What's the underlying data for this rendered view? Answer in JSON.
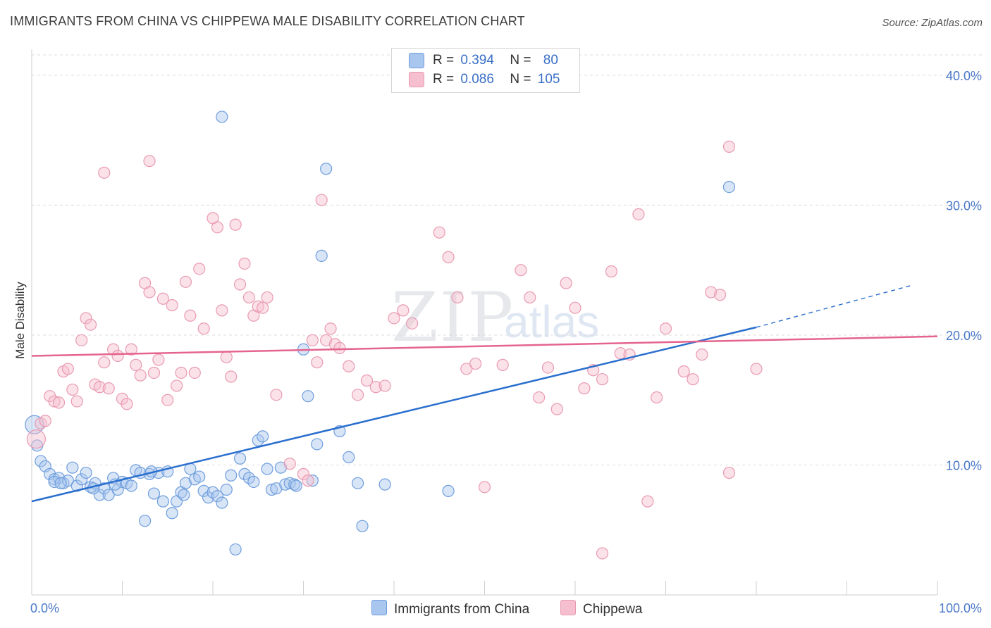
{
  "title": "IMMIGRANTS FROM CHINA VS CHIPPEWA MALE DISABILITY CORRELATION CHART",
  "source": "Source: ZipAtlas.com",
  "watermark": {
    "zip": "ZIP",
    "atlas": "atlas"
  },
  "legend": {
    "r_label": "R =",
    "n_label": "N =",
    "series": [
      {
        "name": "Immigrants from China",
        "r": "0.394",
        "n": "80",
        "color": "#a9c6ee",
        "stroke": "#6f9edd"
      },
      {
        "name": "Chippewa",
        "r": "0.086",
        "n": "105",
        "color": "#f6bfcf",
        "stroke": "#e99ab2"
      }
    ]
  },
  "chart_data": {
    "type": "scatter",
    "title": "IMMIGRANTS FROM CHINA VS CHIPPEWA MALE DISABILITY CORRELATION CHART",
    "xlabel": "",
    "ylabel": "Male Disability",
    "xlim": [
      0,
      100
    ],
    "ylim": [
      0,
      42
    ],
    "x_tick_labels": [
      "0.0%",
      "100.0%"
    ],
    "y_ticks": [
      10,
      20,
      30,
      40
    ],
    "y_tick_labels": [
      "10.0%",
      "20.0%",
      "30.0%",
      "40.0%"
    ],
    "grid": true,
    "legend_position": "top-center",
    "series": [
      {
        "name": "Immigrants from China",
        "color": "#a9c6ee",
        "stroke": "#6f9edd",
        "line_color": "#2a6fce",
        "trend": {
          "x0": 0,
          "y0": 7.2,
          "x1": 80,
          "y1": 20.6,
          "dash_to_x": 97,
          "dash_to_y": 23.8
        },
        "points": [
          [
            0.3,
            13.1
          ],
          [
            0.6,
            11.5
          ],
          [
            1,
            10.3
          ],
          [
            1.5,
            9.9
          ],
          [
            2,
            9.3
          ],
          [
            2.5,
            8.9
          ],
          [
            3,
            9.0
          ],
          [
            3.5,
            8.6
          ],
          [
            4,
            8.8
          ],
          [
            4.5,
            9.8
          ],
          [
            5,
            8.4
          ],
          [
            5.5,
            8.9
          ],
          [
            6,
            9.4
          ],
          [
            6.5,
            8.3
          ],
          [
            7,
            8.6
          ],
          [
            7.5,
            7.7
          ],
          [
            8,
            8.2
          ],
          [
            8.5,
            7.7
          ],
          [
            9,
            9.0
          ],
          [
            9.5,
            8.1
          ],
          [
            10,
            8.7
          ],
          [
            10.5,
            8.6
          ],
          [
            11,
            8.4
          ],
          [
            11.5,
            9.6
          ],
          [
            12,
            9.4
          ],
          [
            12.5,
            5.7
          ],
          [
            13,
            9.3
          ],
          [
            13.5,
            7.8
          ],
          [
            14,
            9.4
          ],
          [
            14.5,
            7.2
          ],
          [
            15,
            9.5
          ],
          [
            15.5,
            6.3
          ],
          [
            16,
            7.2
          ],
          [
            16.5,
            7.9
          ],
          [
            17,
            8.6
          ],
          [
            17.5,
            9.7
          ],
          [
            18,
            8.9
          ],
          [
            18.5,
            9.1
          ],
          [
            19,
            8.0
          ],
          [
            19.5,
            7.5
          ],
          [
            20,
            7.9
          ],
          [
            20.5,
            7.6
          ],
          [
            21,
            7.1
          ],
          [
            21.5,
            8.1
          ],
          [
            22,
            9.2
          ],
          [
            21,
            36.8
          ],
          [
            22.5,
            3.5
          ],
          [
            23,
            10.5
          ],
          [
            23.5,
            9.3
          ],
          [
            24,
            9.0
          ],
          [
            24.5,
            8.7
          ],
          [
            25,
            11.9
          ],
          [
            25.5,
            12.2
          ],
          [
            26,
            9.7
          ],
          [
            26.5,
            8.1
          ],
          [
            27,
            8.2
          ],
          [
            27.5,
            9.8
          ],
          [
            28,
            8.5
          ],
          [
            28.5,
            8.6
          ],
          [
            29,
            8.5
          ],
          [
            29.2,
            8.4
          ],
          [
            30,
            18.9
          ],
          [
            30.5,
            15.3
          ],
          [
            31,
            8.8
          ],
          [
            31.5,
            11.6
          ],
          [
            32,
            26.1
          ],
          [
            32.5,
            32.8
          ],
          [
            34,
            12.6
          ],
          [
            35,
            10.6
          ],
          [
            36,
            8.6
          ],
          [
            36.5,
            5.3
          ],
          [
            39,
            8.5
          ],
          [
            46,
            8.0
          ],
          [
            77,
            31.4
          ],
          [
            2.5,
            8.7
          ],
          [
            3.2,
            8.6
          ],
          [
            6.8,
            8.2
          ],
          [
            9.2,
            8.5
          ],
          [
            13.2,
            9.5
          ],
          [
            16.8,
            7.7
          ]
        ]
      },
      {
        "name": "Chippewa",
        "color": "#f6bfcf",
        "stroke": "#e99ab2",
        "line_color": "#e4648f",
        "trend": {
          "x0": 0,
          "y0": 18.4,
          "x1": 100,
          "y1": 19.9
        },
        "points": [
          [
            0.5,
            12.0
          ],
          [
            1,
            13.2
          ],
          [
            1.5,
            13.4
          ],
          [
            2,
            15.3
          ],
          [
            2.5,
            14.9
          ],
          [
            3,
            14.8
          ],
          [
            3.5,
            17.2
          ],
          [
            4,
            17.4
          ],
          [
            4.5,
            15.8
          ],
          [
            5,
            14.9
          ],
          [
            5.5,
            19.6
          ],
          [
            6,
            21.3
          ],
          [
            6.5,
            20.8
          ],
          [
            7,
            16.2
          ],
          [
            7.5,
            16.0
          ],
          [
            8,
            17.9
          ],
          [
            8.5,
            15.9
          ],
          [
            9,
            18.9
          ],
          [
            9.5,
            18.4
          ],
          [
            10,
            15.1
          ],
          [
            10.5,
            14.7
          ],
          [
            11,
            18.9
          ],
          [
            11.5,
            17.7
          ],
          [
            12,
            16.9
          ],
          [
            12.5,
            24.0
          ],
          [
            13,
            23.3
          ],
          [
            13.5,
            17.1
          ],
          [
            14,
            18.1
          ],
          [
            14.5,
            22.8
          ],
          [
            15,
            15.0
          ],
          [
            15.5,
            22.3
          ],
          [
            16,
            16.1
          ],
          [
            16.5,
            17.1
          ],
          [
            17,
            24.1
          ],
          [
            17.5,
            21.5
          ],
          [
            18,
            17.1
          ],
          [
            18.5,
            25.1
          ],
          [
            19,
            20.5
          ],
          [
            20,
            29.0
          ],
          [
            20.5,
            28.3
          ],
          [
            21,
            21.9
          ],
          [
            21.5,
            18.3
          ],
          [
            22,
            16.8
          ],
          [
            22.5,
            28.5
          ],
          [
            23,
            23.9
          ],
          [
            23.5,
            25.5
          ],
          [
            24,
            22.9
          ],
          [
            24.5,
            21.5
          ],
          [
            25,
            22.2
          ],
          [
            25.5,
            22.1
          ],
          [
            26,
            22.9
          ],
          [
            27,
            15.4
          ],
          [
            28.5,
            10.1
          ],
          [
            30,
            9.3
          ],
          [
            30.5,
            8.8
          ],
          [
            31,
            19.6
          ],
          [
            31.5,
            17.9
          ],
          [
            32,
            30.4
          ],
          [
            32.5,
            19.6
          ],
          [
            33,
            20.5
          ],
          [
            33.5,
            19.3
          ],
          [
            34,
            19.0
          ],
          [
            35,
            17.6
          ],
          [
            36,
            15.4
          ],
          [
            37,
            16.5
          ],
          [
            38,
            16.0
          ],
          [
            39,
            16.1
          ],
          [
            40,
            21.3
          ],
          [
            41,
            21.9
          ],
          [
            42,
            20.9
          ],
          [
            45,
            27.9
          ],
          [
            46,
            26.0
          ],
          [
            47,
            22.9
          ],
          [
            48,
            17.4
          ],
          [
            49,
            17.8
          ],
          [
            50,
            8.3
          ],
          [
            52,
            17.7
          ],
          [
            54,
            25.0
          ],
          [
            55,
            22.9
          ],
          [
            56,
            15.2
          ],
          [
            57,
            17.5
          ],
          [
            58,
            14.3
          ],
          [
            59,
            24.0
          ],
          [
            60,
            22.1
          ],
          [
            61,
            15.9
          ],
          [
            62,
            17.3
          ],
          [
            63,
            16.6
          ],
          [
            64,
            24.9
          ],
          [
            65,
            18.6
          ],
          [
            66,
            18.5
          ],
          [
            67,
            29.3
          ],
          [
            68,
            7.2
          ],
          [
            69,
            15.2
          ],
          [
            70,
            20.5
          ],
          [
            72,
            17.2
          ],
          [
            73,
            16.6
          ],
          [
            74,
            18.5
          ],
          [
            75,
            23.3
          ],
          [
            76,
            23.1
          ],
          [
            77,
            34.5
          ],
          [
            13,
            33.4
          ],
          [
            8,
            32.5
          ],
          [
            63,
            3.2
          ],
          [
            77,
            9.4
          ],
          [
            80,
            17.4
          ]
        ]
      }
    ]
  }
}
